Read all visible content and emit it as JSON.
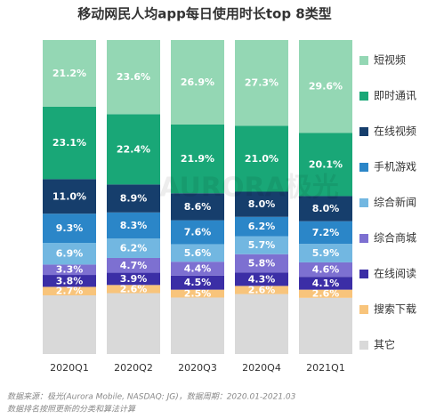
{
  "chart_data": {
    "type": "stacked_bar",
    "title": "移动网民人均app每日使用时长top 8类型",
    "categories": [
      "2020Q1",
      "2020Q2",
      "2020Q3",
      "2020Q4",
      "2021Q1"
    ],
    "ylim": [
      0,
      100
    ],
    "series": [
      {
        "name": "其它",
        "color": "#d9d9d9",
        "values": [
          18.7,
          19.4,
          18.0,
          19.1,
          17.9
        ]
      },
      {
        "name": "搜索下载",
        "color": "#f8c47b",
        "values": [
          2.7,
          2.6,
          2.5,
          2.6,
          2.6
        ],
        "value_labels": [
          "2.7%",
          "2.6%",
          "2.5%",
          "2.6%",
          "2.6%"
        ]
      },
      {
        "name": "在线阅读",
        "color": "#3b2ea6",
        "values": [
          3.8,
          3.9,
          4.5,
          4.3,
          4.1
        ],
        "value_labels": [
          "3.8%",
          "3.9%",
          "4.5%",
          "4.3%",
          "4.1%"
        ]
      },
      {
        "name": "综合商城",
        "color": "#7d70d1",
        "values": [
          3.3,
          4.7,
          4.4,
          5.8,
          4.6
        ],
        "value_labels": [
          "3.3%",
          "4.7%",
          "4.4%",
          "5.8%",
          "4.6%"
        ]
      },
      {
        "name": "综合新闻",
        "color": "#72b7e1",
        "values": [
          6.9,
          6.2,
          5.6,
          5.7,
          5.9
        ],
        "value_labels": [
          "6.9%",
          "6.2%",
          "5.6%",
          "5.7%",
          "5.9%"
        ]
      },
      {
        "name": "手机游戏",
        "color": "#2b86c8",
        "values": [
          9.3,
          8.3,
          7.6,
          6.2,
          7.2
        ],
        "value_labels": [
          "9.3%",
          "8.3%",
          "7.6%",
          "6.2%",
          "7.2%"
        ]
      },
      {
        "name": "在线视频",
        "color": "#163e6c",
        "values": [
          11.0,
          8.9,
          8.6,
          8.0,
          8.0
        ],
        "value_labels": [
          "11.0%",
          "8.9%",
          "8.6%",
          "8.0%",
          "8.0%"
        ]
      },
      {
        "name": "即时通讯",
        "color": "#19a777",
        "values": [
          23.1,
          22.4,
          21.9,
          21.0,
          20.1
        ],
        "value_labels": [
          "23.1%",
          "22.4%",
          "21.9%",
          "21.0%",
          "20.1%"
        ]
      },
      {
        "name": "短视频",
        "color": "#94d7b4",
        "values": [
          21.2,
          23.6,
          26.9,
          27.3,
          29.6
        ],
        "value_labels": [
          "21.2%",
          "23.6%",
          "26.9%",
          "27.3%",
          "29.6%"
        ]
      }
    ],
    "watermark": "AURORA极光",
    "footnotes": [
      "数据来源：极光(Aurora Mobile, NASDAQ: JG)，数据周期：2020.01-2021.03",
      "数据排名按照更新的分类和算法计算"
    ]
  }
}
